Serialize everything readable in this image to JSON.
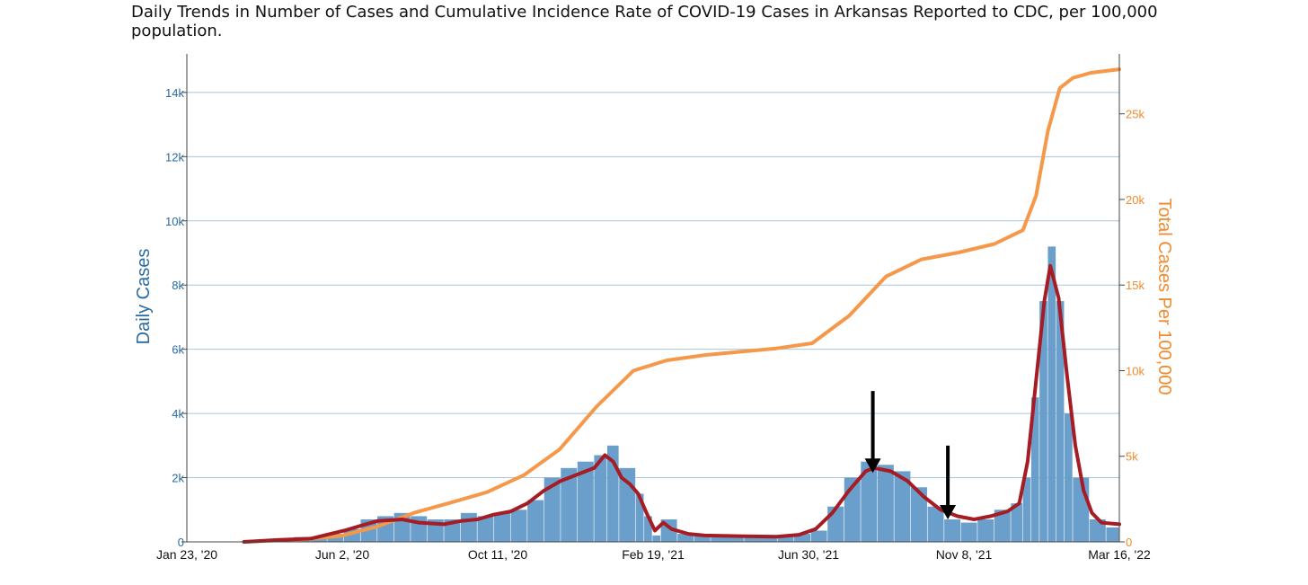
{
  "chart_data": {
    "type": "bar",
    "title": "Daily Trends in Number of Cases and Cumulative Incidence Rate of COVID-19 Cases in Arkansas Reported to CDC, per 100,000 population.",
    "ylabel": "Daily Cases",
    "ylabel_right": "Total Cases Per 100,000",
    "x_range": [
      "2020-01-23",
      "2022-03-16"
    ],
    "x_ticks": [
      "Jan 23, '20",
      "Jun 2, '20",
      "Oct 11, '20",
      "Feb 19, '21",
      "Jun 30, '21",
      "Nov 8, '21",
      "Mar 16, '22"
    ],
    "ylim": [
      0,
      15200
    ],
    "y_ticks": [
      "0",
      "2k",
      "4k",
      "6k",
      "8k",
      "10k",
      "12k",
      "14k"
    ],
    "ylim_right": [
      0,
      28500
    ],
    "y_ticks_right": [
      "0",
      "5k",
      "10k",
      "15k",
      "20k",
      "25k"
    ],
    "grid": true,
    "colors": {
      "daily": "#6a9fcb",
      "average": "#a51c24",
      "cumulative": "#f5984a",
      "left_axis": "#2a6aa0",
      "right_axis": "#f08a2e"
    },
    "series": [
      {
        "type": "bar",
        "axis": "left",
        "points": [
          [
            "2020-03-11",
            0
          ],
          [
            "2020-03-25",
            40
          ],
          [
            "2020-04-08",
            80
          ],
          [
            "2020-04-22",
            150
          ],
          [
            "2020-05-06",
            150
          ],
          [
            "2020-05-20",
            250
          ],
          [
            "2020-06-03",
            400
          ],
          [
            "2020-06-17",
            700
          ],
          [
            "2020-07-01",
            800
          ],
          [
            "2020-07-15",
            900
          ],
          [
            "2020-07-29",
            800
          ],
          [
            "2020-08-12",
            700
          ],
          [
            "2020-08-26",
            700
          ],
          [
            "2020-09-09",
            900
          ],
          [
            "2020-09-23",
            800
          ],
          [
            "2020-10-07",
            900
          ],
          [
            "2020-10-21",
            1000
          ],
          [
            "2020-11-04",
            1300
          ],
          [
            "2020-11-18",
            2000
          ],
          [
            "2020-12-02",
            2300
          ],
          [
            "2020-12-16",
            2500
          ],
          [
            "2020-12-30",
            2700
          ],
          [
            "2021-01-10",
            3000
          ],
          [
            "2021-01-20",
            2300
          ],
          [
            "2021-02-03",
            1500
          ],
          [
            "2021-02-10",
            800
          ],
          [
            "2021-02-17",
            200
          ],
          [
            "2021-02-24",
            700
          ],
          [
            "2021-03-10",
            250
          ],
          [
            "2021-03-24",
            180
          ],
          [
            "2021-04-07",
            180
          ],
          [
            "2021-05-05",
            200
          ],
          [
            "2021-06-02",
            180
          ],
          [
            "2021-06-16",
            250
          ],
          [
            "2021-06-30",
            350
          ],
          [
            "2021-07-14",
            1100
          ],
          [
            "2021-07-28",
            2000
          ],
          [
            "2021-08-11",
            2500
          ],
          [
            "2021-08-25",
            2400
          ],
          [
            "2021-09-08",
            2200
          ],
          [
            "2021-09-22",
            1700
          ],
          [
            "2021-10-06",
            1100
          ],
          [
            "2021-10-20",
            700
          ],
          [
            "2021-11-03",
            600
          ],
          [
            "2021-11-17",
            700
          ],
          [
            "2021-12-01",
            1000
          ],
          [
            "2021-12-15",
            1200
          ],
          [
            "2021-12-25",
            2000
          ],
          [
            "2022-01-01",
            4500
          ],
          [
            "2022-01-08",
            7500
          ],
          [
            "2022-01-15",
            9200
          ],
          [
            "2022-01-22",
            7500
          ],
          [
            "2022-01-29",
            4000
          ],
          [
            "2022-02-05",
            2000
          ],
          [
            "2022-02-19",
            700
          ],
          [
            "2022-03-05",
            450
          ],
          [
            "2022-03-16",
            400
          ]
        ]
      },
      {
        "type": "line",
        "axis": "left",
        "points": [
          [
            "2020-03-11",
            0
          ],
          [
            "2020-04-08",
            60
          ],
          [
            "2020-05-06",
            100
          ],
          [
            "2020-06-03",
            350
          ],
          [
            "2020-06-17",
            500
          ],
          [
            "2020-07-01",
            650
          ],
          [
            "2020-07-22",
            700
          ],
          [
            "2020-08-05",
            600
          ],
          [
            "2020-08-26",
            550
          ],
          [
            "2020-09-09",
            650
          ],
          [
            "2020-09-23",
            700
          ],
          [
            "2020-10-07",
            850
          ],
          [
            "2020-10-21",
            950
          ],
          [
            "2020-11-04",
            1200
          ],
          [
            "2020-11-18",
            1600
          ],
          [
            "2020-12-02",
            1900
          ],
          [
            "2020-12-16",
            2100
          ],
          [
            "2020-12-30",
            2300
          ],
          [
            "2021-01-08",
            2700
          ],
          [
            "2021-01-15",
            2500
          ],
          [
            "2021-01-22",
            2000
          ],
          [
            "2021-01-29",
            1800
          ],
          [
            "2021-02-05",
            1500
          ],
          [
            "2021-02-12",
            900
          ],
          [
            "2021-02-19",
            350
          ],
          [
            "2021-02-26",
            600
          ],
          [
            "2021-03-05",
            400
          ],
          [
            "2021-03-19",
            250
          ],
          [
            "2021-04-02",
            200
          ],
          [
            "2021-05-01",
            180
          ],
          [
            "2021-06-01",
            160
          ],
          [
            "2021-06-20",
            220
          ],
          [
            "2021-07-04",
            400
          ],
          [
            "2021-07-18",
            900
          ],
          [
            "2021-08-01",
            1600
          ],
          [
            "2021-08-15",
            2200
          ],
          [
            "2021-08-22",
            2300
          ],
          [
            "2021-09-05",
            2200
          ],
          [
            "2021-09-19",
            1900
          ],
          [
            "2021-10-03",
            1400
          ],
          [
            "2021-10-17",
            1000
          ],
          [
            "2021-10-31",
            800
          ],
          [
            "2021-11-14",
            700
          ],
          [
            "2021-11-28",
            800
          ],
          [
            "2021-12-12",
            950
          ],
          [
            "2021-12-22",
            1200
          ],
          [
            "2021-12-29",
            2500
          ],
          [
            "2022-01-05",
            5000
          ],
          [
            "2022-01-12",
            7500
          ],
          [
            "2022-01-17",
            8600
          ],
          [
            "2022-01-24",
            7600
          ],
          [
            "2022-01-31",
            5200
          ],
          [
            "2022-02-07",
            3000
          ],
          [
            "2022-02-14",
            1600
          ],
          [
            "2022-02-21",
            900
          ],
          [
            "2022-03-01",
            600
          ],
          [
            "2022-03-16",
            550
          ]
        ]
      },
      {
        "type": "line",
        "axis": "right",
        "points": [
          [
            "2020-03-11",
            0
          ],
          [
            "2020-05-01",
            150
          ],
          [
            "2020-06-01",
            350
          ],
          [
            "2020-07-01",
            900
          ],
          [
            "2020-08-01",
            1700
          ],
          [
            "2020-09-01",
            2300
          ],
          [
            "2020-10-01",
            2900
          ],
          [
            "2020-11-01",
            3900
          ],
          [
            "2020-12-01",
            5400
          ],
          [
            "2021-01-01",
            7900
          ],
          [
            "2021-02-01",
            10000
          ],
          [
            "2021-03-01",
            10600
          ],
          [
            "2021-04-01",
            10900
          ],
          [
            "2021-05-01",
            11100
          ],
          [
            "2021-06-01",
            11300
          ],
          [
            "2021-07-01",
            11600
          ],
          [
            "2021-08-01",
            13200
          ],
          [
            "2021-09-01",
            15500
          ],
          [
            "2021-10-01",
            16500
          ],
          [
            "2021-11-01",
            16900
          ],
          [
            "2021-12-01",
            17400
          ],
          [
            "2021-12-25",
            18200
          ],
          [
            "2022-01-05",
            20200
          ],
          [
            "2022-01-15",
            24000
          ],
          [
            "2022-01-25",
            26500
          ],
          [
            "2022-02-05",
            27100
          ],
          [
            "2022-02-20",
            27400
          ],
          [
            "2022-03-16",
            27600
          ]
        ]
      }
    ],
    "annotations": [
      {
        "type": "arrow",
        "x": "2021-08-21",
        "y_from": 4700,
        "y_to": 2150
      },
      {
        "type": "arrow",
        "x": "2021-10-23",
        "y_from": 3000,
        "y_to": 700
      }
    ]
  }
}
